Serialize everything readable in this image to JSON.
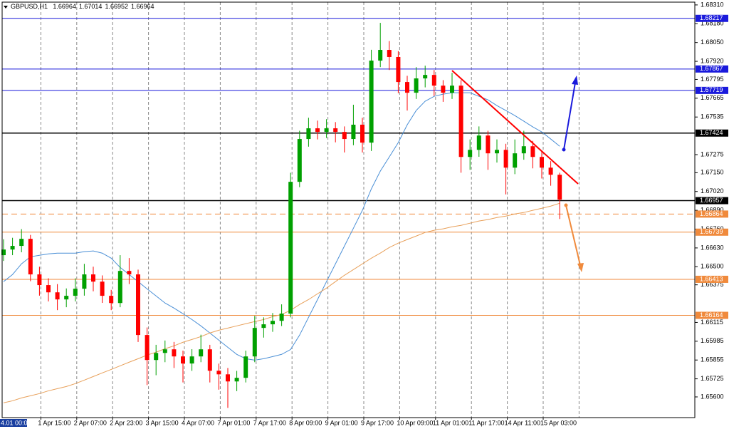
{
  "chart_data": {
    "type": "candlestick",
    "title": "GBPUSD,H1",
    "header_values": [
      1.66964,
      1.67014,
      1.66952,
      1.66964
    ],
    "ylim": [
      1.65457,
      1.68344
    ],
    "yticks": [
      {
        "value": 1.6831,
        "label": "1.68310"
      },
      {
        "value": 1.6818,
        "label": "1.68180"
      },
      {
        "value": 1.6805,
        "label": "1.68050"
      },
      {
        "value": 1.6792,
        "label": "1.67920"
      },
      1.67795,
      1.67665,
      1.67535,
      1.67275,
      {
        "value": 1.6715,
        "label": "1.67150"
      },
      {
        "value": 1.6702,
        "label": "1.67020"
      },
      {
        "value": 1.6689,
        "label": "1.66890"
      },
      {
        "value": 1.6676,
        "label": "1.66760"
      },
      {
        "value": 1.6663,
        "label": "1.66630"
      },
      {
        "value": 1.665,
        "label": "1.66500"
      },
      1.66375,
      1.66115,
      1.65985,
      1.65855,
      1.65725,
      {
        "value": 1.656,
        "label": "1.65600"
      }
    ],
    "x_labels": [
      "4.01 00:00",
      "1 Apr 15:00",
      "2 Apr 07:00",
      "2 Apr 23:00",
      "3 Apr 15:00",
      "4 Apr 07:00",
      "7 Apr 01:00",
      "7 Apr 17:00",
      "8 Apr 09:00",
      "9 Apr 01:00",
      "9 Apr 17:00",
      "10 Apr 09:00",
      "11 Apr 01:00",
      "11 Apr 17:00",
      "14 Apr 11:00",
      "15 Apr 03:00"
    ],
    "grid": true,
    "up_color": "#00a000",
    "down_color": "#ff0000",
    "candles": [
      [
        1.6658,
        1.6669,
        1.6654,
        1.66619
      ],
      [
        1.66619,
        1.667,
        1.6658,
        1.66644
      ],
      [
        1.66644,
        1.6676,
        1.666,
        1.66693
      ],
      [
        1.66693,
        1.6672,
        1.664,
        1.66447
      ],
      [
        1.66447,
        1.665,
        1.663,
        1.66373
      ],
      [
        1.66373,
        1.6642,
        1.6626,
        1.66323
      ],
      [
        1.66323,
        1.6638,
        1.662,
        1.66274
      ],
      [
        1.66274,
        1.6635,
        1.6622,
        1.66299
      ],
      [
        1.66299,
        1.6642,
        1.6626,
        1.66348
      ],
      [
        1.66348,
        1.6652,
        1.663,
        1.66447
      ],
      [
        1.66447,
        1.665,
        1.6633,
        1.66397
      ],
      [
        1.66397,
        1.6644,
        1.6625,
        1.66299
      ],
      [
        1.66299,
        1.6634,
        1.662,
        1.66249
      ],
      [
        1.66249,
        1.6658,
        1.6622,
        1.66471
      ],
      [
        1.66471,
        1.6656,
        1.6638,
        1.66447
      ],
      [
        1.66447,
        1.6648,
        1.6598,
        1.66028
      ],
      [
        1.66028,
        1.6608,
        1.65682,
        1.65855
      ],
      [
        1.65855,
        1.6596,
        1.6575,
        1.65904
      ],
      [
        1.65904,
        1.6599,
        1.6584,
        1.65929
      ],
      [
        1.65929,
        1.6598,
        1.658,
        1.6588
      ],
      [
        1.6588,
        1.6592,
        1.657,
        1.65831
      ],
      [
        1.65831,
        1.6593,
        1.6578,
        1.6588
      ],
      [
        1.6588,
        1.6603,
        1.6584,
        1.65929
      ],
      [
        1.65929,
        1.6596,
        1.657,
        1.65781
      ],
      [
        1.65781,
        1.6583,
        1.6565,
        1.65756
      ],
      [
        1.65756,
        1.658,
        1.65524,
        1.65707
      ],
      [
        1.65707,
        1.6578,
        1.6564,
        1.65732
      ],
      [
        1.65732,
        1.6592,
        1.657,
        1.6588
      ],
      [
        1.6588,
        1.6616,
        1.6584,
        1.66077
      ],
      [
        1.66077,
        1.6615,
        1.6601,
        1.66102
      ],
      [
        1.66102,
        1.6618,
        1.6605,
        1.66126
      ],
      [
        1.66126,
        1.6624,
        1.6609,
        1.66176
      ],
      [
        1.66176,
        1.6715,
        1.6615,
        1.67087
      ],
      [
        1.67087,
        1.6744,
        1.6705,
        1.67383
      ],
      [
        1.67383,
        1.6753,
        1.6733,
        1.67457
      ],
      [
        1.67457,
        1.6751,
        1.6738,
        1.67432
      ],
      [
        1.67432,
        1.6752,
        1.6739,
        1.67457
      ],
      [
        1.67457,
        1.675,
        1.6736,
        1.67432
      ],
      [
        1.67432,
        1.6747,
        1.6729,
        1.67383
      ],
      [
        1.67383,
        1.6762,
        1.6734,
        1.67482
      ],
      [
        1.67482,
        1.6753,
        1.6729,
        1.67358
      ],
      [
        1.67358,
        1.68,
        1.673,
        1.67925
      ],
      [
        1.67925,
        1.68186,
        1.6788,
        1.67999
      ],
      [
        1.67999,
        1.6806,
        1.6786,
        1.6795
      ],
      [
        1.6795,
        1.6799,
        1.677,
        1.67777
      ],
      [
        1.67777,
        1.6782,
        1.6758,
        1.67703
      ],
      [
        1.67703,
        1.6788,
        1.6766,
        1.67802
      ],
      [
        1.67802,
        1.6789,
        1.6774,
        1.67826
      ],
      [
        1.67826,
        1.6786,
        1.6768,
        1.67752
      ],
      [
        1.67752,
        1.6779,
        1.6764,
        1.67703
      ],
      [
        1.67703,
        1.6784,
        1.6766,
        1.67752
      ],
      [
        1.67752,
        1.6779,
        1.6715,
        1.67259
      ],
      [
        1.67259,
        1.6738,
        1.6717,
        1.67308
      ],
      [
        1.67308,
        1.6747,
        1.6726,
        1.67407
      ],
      [
        1.67407,
        1.6744,
        1.6717,
        1.67284
      ],
      [
        1.67284,
        1.6738,
        1.6722,
        1.67308
      ],
      [
        1.67308,
        1.6735,
        1.67,
        1.67185
      ],
      [
        1.67185,
        1.6738,
        1.6714,
        1.67284
      ],
      [
        1.67284,
        1.6744,
        1.6724,
        1.67333
      ],
      [
        1.67333,
        1.6737,
        1.6718,
        1.67259
      ],
      [
        1.67259,
        1.673,
        1.6711,
        1.67185
      ],
      [
        1.67185,
        1.6723,
        1.6706,
        1.67136
      ],
      [
        1.67136,
        1.6715,
        1.6683,
        1.66964
      ]
    ],
    "moving_averages": [
      {
        "color": "#4a8fd6",
        "values": [
          1.66397,
          1.66446,
          1.6652,
          1.66569,
          1.66579,
          1.66589,
          1.66594,
          1.66594,
          1.66594,
          1.66604,
          1.66609,
          1.66594,
          1.66559,
          1.66495,
          1.66446,
          1.66397,
          1.66347,
          1.66298,
          1.66249,
          1.66214,
          1.66175,
          1.66135,
          1.66091,
          1.66042,
          1.65992,
          1.65943,
          1.65894,
          1.65864,
          1.65854,
          1.65864,
          1.65879,
          1.65894,
          1.65928,
          1.66027,
          1.6615,
          1.66273,
          1.66397,
          1.6652,
          1.66643,
          1.66766,
          1.6689,
          1.67038,
          1.67161,
          1.67259,
          1.67358,
          1.67481,
          1.6758,
          1.67644,
          1.67678,
          1.67693,
          1.67703,
          1.67703,
          1.67703,
          1.67678,
          1.67654,
          1.67614,
          1.6758,
          1.67545,
          1.67506,
          1.67467,
          1.67432,
          1.67383,
          1.67333
        ]
      },
      {
        "color": "#e8a05a",
        "values": [
          1.65559,
          1.65573,
          1.65593,
          1.65608,
          1.65623,
          1.65642,
          1.65657,
          1.65672,
          1.65692,
          1.65716,
          1.65741,
          1.65766,
          1.6579,
          1.65815,
          1.6584,
          1.65864,
          1.65889,
          1.65909,
          1.65933,
          1.65953,
          1.65978,
          1.65997,
          1.66017,
          1.66042,
          1.66061,
          1.66076,
          1.66091,
          1.66106,
          1.66121,
          1.66135,
          1.66155,
          1.6617,
          1.66199,
          1.66239,
          1.66273,
          1.66313,
          1.66352,
          1.66397,
          1.66441,
          1.6648,
          1.6652,
          1.66559,
          1.66594,
          1.66633,
          1.66663,
          1.66688,
          1.66712,
          1.66737,
          1.66752,
          1.66762,
          1.66776,
          1.66786,
          1.66801,
          1.66816,
          1.66826,
          1.6684,
          1.6685,
          1.66865,
          1.66875,
          1.6689,
          1.66904,
          1.66919,
          1.66939
        ]
      }
    ],
    "levels": [
      {
        "value": 1.68217,
        "color": "#1a1adc",
        "style": "solid"
      },
      {
        "value": 1.67867,
        "color": "#1a1adc",
        "style": "solid"
      },
      {
        "value": 1.67719,
        "color": "#1a1adc",
        "style": "solid"
      },
      {
        "value": 1.67424,
        "color": "#000000",
        "style": "solid"
      },
      {
        "value": 1.66957,
        "color": "#000000",
        "style": "solid"
      },
      {
        "value": 1.66864,
        "color": "#f08a3c",
        "style": "dashed"
      },
      {
        "value": 1.66739,
        "color": "#f08a3c",
        "style": "solid"
      },
      {
        "value": 1.66413,
        "color": "#f08a3c",
        "style": "solid"
      },
      {
        "value": 1.66164,
        "color": "#f08a3c",
        "style": "solid"
      }
    ]
  }
}
